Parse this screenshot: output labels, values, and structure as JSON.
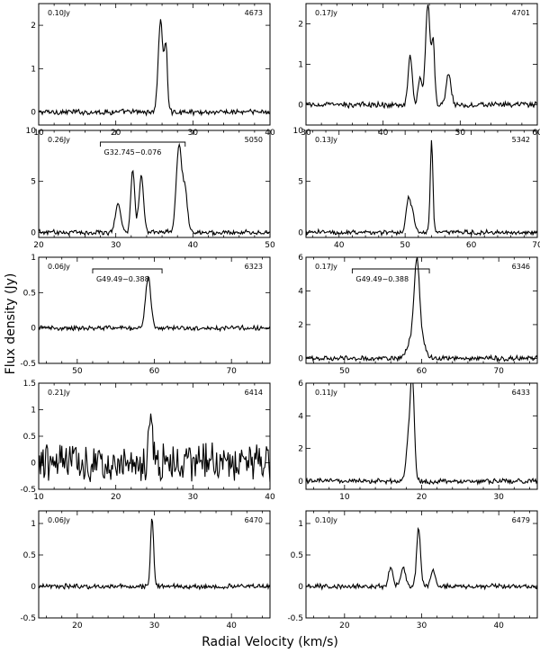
{
  "figure": {
    "ylabel": "Flux density (Jy)",
    "xlabel": "Radial Velocity (km/s)"
  },
  "chart_data": [
    {
      "type": "line",
      "id": "4673",
      "noise": "0.10Jy",
      "source_label": "",
      "xlim": [
        10,
        40
      ],
      "ylim": [
        -0.3,
        2.5
      ],
      "xticks": [
        10,
        20,
        30,
        40
      ],
      "yticks": [
        0,
        1,
        2
      ],
      "peaks": [
        [
          25.8,
          2.1,
          0.3
        ],
        [
          26.5,
          1.5,
          0.2
        ]
      ]
    },
    {
      "type": "line",
      "id": "4701",
      "noise": "0.17Jy",
      "source_label": "",
      "xlim": [
        30,
        60
      ],
      "ylim": [
        -0.5,
        2.5
      ],
      "xticks": [
        30,
        40,
        50,
        60
      ],
      "yticks": [
        0,
        1,
        2
      ],
      "peaks": [
        [
          43.5,
          1.3,
          0.25
        ],
        [
          44.8,
          0.7,
          0.25
        ],
        [
          45.8,
          2.5,
          0.3
        ],
        [
          46.5,
          1.5,
          0.2
        ],
        [
          48.5,
          0.8,
          0.3
        ]
      ]
    },
    {
      "type": "line",
      "id": "5050",
      "noise": "0.26Jy",
      "source_label": "G32.745−0.076",
      "source_bracket": [
        28,
        39
      ],
      "xlim": [
        20,
        50
      ],
      "ylim": [
        -0.5,
        10
      ],
      "xticks": [
        20,
        30,
        40,
        50
      ],
      "yticks": [
        0,
        5,
        10
      ],
      "peaks": [
        [
          30.3,
          2.8,
          0.35
        ],
        [
          32.2,
          6.2,
          0.25
        ],
        [
          33.3,
          5.5,
          0.3
        ],
        [
          38.2,
          8.6,
          0.35
        ],
        [
          39.0,
          4.0,
          0.3
        ]
      ]
    },
    {
      "type": "line",
      "id": "5342",
      "noise": "0.13Jy",
      "source_label": "",
      "xlim": [
        35,
        70
      ],
      "ylim": [
        -0.5,
        10
      ],
      "xticks": [
        40,
        50,
        60,
        70
      ],
      "yticks": [
        0,
        5,
        10
      ],
      "peaks": [
        [
          50.5,
          3.4,
          0.35
        ],
        [
          51.2,
          1.5,
          0.3
        ],
        [
          54.0,
          9.0,
          0.2
        ]
      ]
    },
    {
      "type": "line",
      "id": "6323",
      "noise": "0.06Jy",
      "source_label": "G49.49−0.388",
      "source_bracket": [
        52,
        61
      ],
      "xlim": [
        45,
        75
      ],
      "ylim": [
        -0.5,
        1
      ],
      "xticks": [
        50,
        60,
        70
      ],
      "yticks": [
        -0.5,
        0,
        0.5,
        1
      ],
      "peaks": [
        [
          59.2,
          0.72,
          0.35
        ]
      ]
    },
    {
      "type": "line",
      "id": "6346",
      "noise": "0.17Jy",
      "source_label": "G49.49−0.388",
      "source_bracket": [
        51,
        61
      ],
      "xlim": [
        45,
        75
      ],
      "ylim": [
        -0.3,
        6
      ],
      "xticks": [
        50,
        60,
        70
      ],
      "yticks": [
        0,
        2,
        4,
        6
      ],
      "peaks": [
        [
          59.4,
          5.1,
          0.35
        ],
        [
          58.8,
          1.2,
          0.6
        ],
        [
          60.2,
          0.8,
          0.4
        ]
      ]
    },
    {
      "type": "line",
      "id": "6414",
      "noise": "0.21Jy",
      "source_label": "",
      "xlim": [
        10,
        40
      ],
      "ylim": [
        -0.5,
        1.5
      ],
      "xticks": [
        10,
        20,
        30,
        40
      ],
      "yticks": [
        -0.5,
        0,
        0.5,
        1,
        1.5
      ],
      "peaks": [
        [
          24.5,
          1.05,
          0.25
        ]
      ]
    },
    {
      "type": "line",
      "id": "6433",
      "noise": "0.11Jy",
      "source_label": "",
      "xlim": [
        5,
        35
      ],
      "ylim": [
        -0.5,
        6
      ],
      "xticks": [
        10,
        20,
        30
      ],
      "yticks": [
        0,
        2,
        4,
        6
      ],
      "peaks": [
        [
          18.8,
          6.0,
          0.25
        ],
        [
          18.3,
          2.5,
          0.3
        ]
      ]
    },
    {
      "type": "line",
      "id": "6470",
      "noise": "0.06Jy",
      "source_label": "",
      "xlim": [
        15,
        45
      ],
      "ylim": [
        -0.5,
        1.2
      ],
      "xticks": [
        20,
        30,
        40
      ],
      "yticks": [
        -0.5,
        0,
        0.5,
        1
      ],
      "peaks": [
        [
          29.7,
          1.1,
          0.2
        ]
      ]
    },
    {
      "type": "line",
      "id": "6479",
      "noise": "0.10Jy",
      "source_label": "",
      "xlim": [
        15,
        45
      ],
      "ylim": [
        -0.5,
        1.2
      ],
      "xticks": [
        20,
        30,
        40
      ],
      "yticks": [
        -0.5,
        0,
        0.5,
        1
      ],
      "peaks": [
        [
          29.6,
          0.92,
          0.25
        ],
        [
          26.0,
          0.3,
          0.3
        ],
        [
          27.6,
          0.3,
          0.3
        ],
        [
          31.5,
          0.25,
          0.3
        ]
      ]
    }
  ]
}
